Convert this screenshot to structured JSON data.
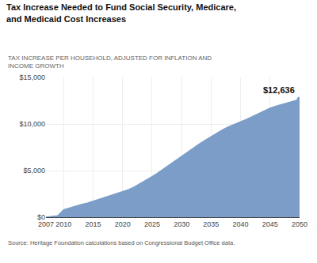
{
  "chart_data": {
    "type": "area",
    "title": "Tax Increase Needed to Fund Social Security, Medicare,\nand Medicaid Cost Increases",
    "subtitle": "TAX INCREASE PER HOUSEHOLD, ADJUSTED FOR INFLATION AND\nINCOME GROWTH",
    "source": "Source: Heritage Foundation calculations based on Congressional Budget Office data.",
    "annotations": [
      {
        "text": "$12,636",
        "x": 2050,
        "y": 12636
      }
    ],
    "x": [
      2007,
      2008,
      2009,
      2010,
      2011,
      2012,
      2013,
      2014,
      2015,
      2016,
      2017,
      2018,
      2019,
      2020,
      2021,
      2022,
      2023,
      2024,
      2025,
      2026,
      2027,
      2028,
      2029,
      2030,
      2031,
      2032,
      2033,
      2034,
      2035,
      2036,
      2037,
      2038,
      2039,
      2040,
      2041,
      2042,
      2043,
      2044,
      2045,
      2046,
      2047,
      2048,
      2049,
      2050
    ],
    "values": [
      0,
      50,
      150,
      800,
      1000,
      1200,
      1350,
      1500,
      1700,
      1900,
      2100,
      2300,
      2500,
      2700,
      2950,
      3250,
      3600,
      3950,
      4350,
      4750,
      5200,
      5650,
      6100,
      6550,
      7000,
      7450,
      7850,
      8250,
      8650,
      9050,
      9400,
      9700,
      9950,
      10200,
      10500,
      10800,
      11100,
      11400,
      11700,
      11900,
      12100,
      12250,
      12450,
      12636
    ],
    "color": "#7b9dc8",
    "xlim": [
      2007,
      2050
    ],
    "xticks": [
      2007,
      2010,
      2015,
      2020,
      2025,
      2030,
      2035,
      2040,
      2045,
      2050
    ],
    "ylim": [
      0,
      15000
    ],
    "yticks": [
      {
        "value": 0,
        "label": "$0"
      },
      {
        "value": 5000,
        "label": "$5,000"
      },
      {
        "value": 10000,
        "label": "$10,000"
      },
      {
        "value": 15000,
        "label": "$15,000"
      }
    ],
    "grid": true
  }
}
